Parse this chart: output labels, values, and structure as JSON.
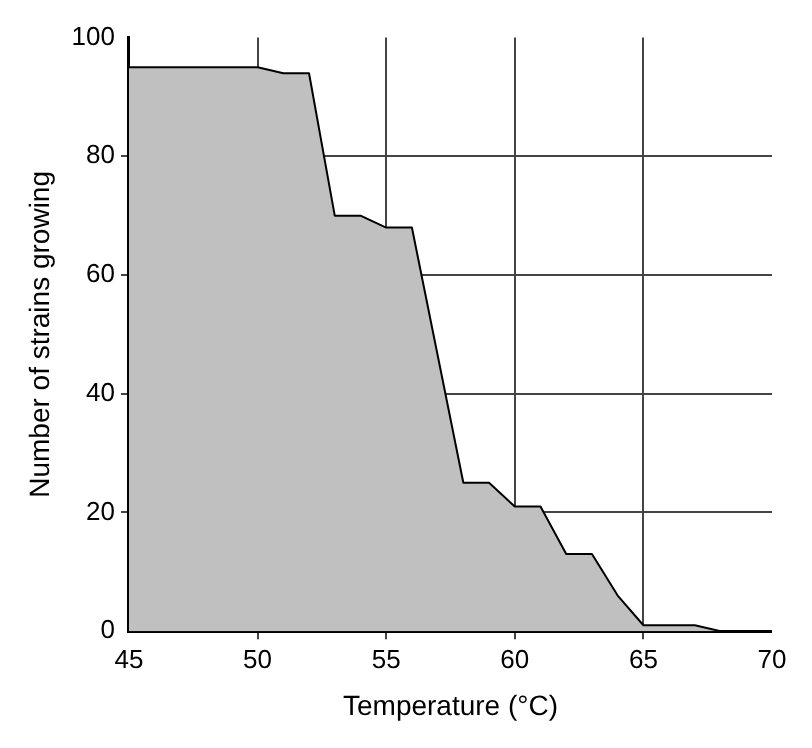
{
  "chart_data": {
    "type": "area",
    "xlabel": "Temperature (°C)",
    "ylabel": "Number of strains growing",
    "x": [
      45,
      50,
      51,
      52,
      53,
      54,
      55,
      56,
      58,
      59,
      60,
      61,
      62,
      63,
      64,
      65,
      66,
      67,
      68,
      70
    ],
    "values": [
      95,
      95,
      94,
      94,
      70,
      70,
      68,
      68,
      25,
      25,
      21,
      21,
      13,
      13,
      6,
      1,
      1,
      1,
      0,
      0
    ],
    "color": "#c0c0c0",
    "xlim": [
      45,
      70
    ],
    "xticks": [
      45,
      50,
      55,
      60,
      65,
      70
    ],
    "ylim": [
      0,
      100
    ],
    "yticks": [
      0,
      20,
      40,
      60,
      80,
      100
    ],
    "grid": true
  }
}
